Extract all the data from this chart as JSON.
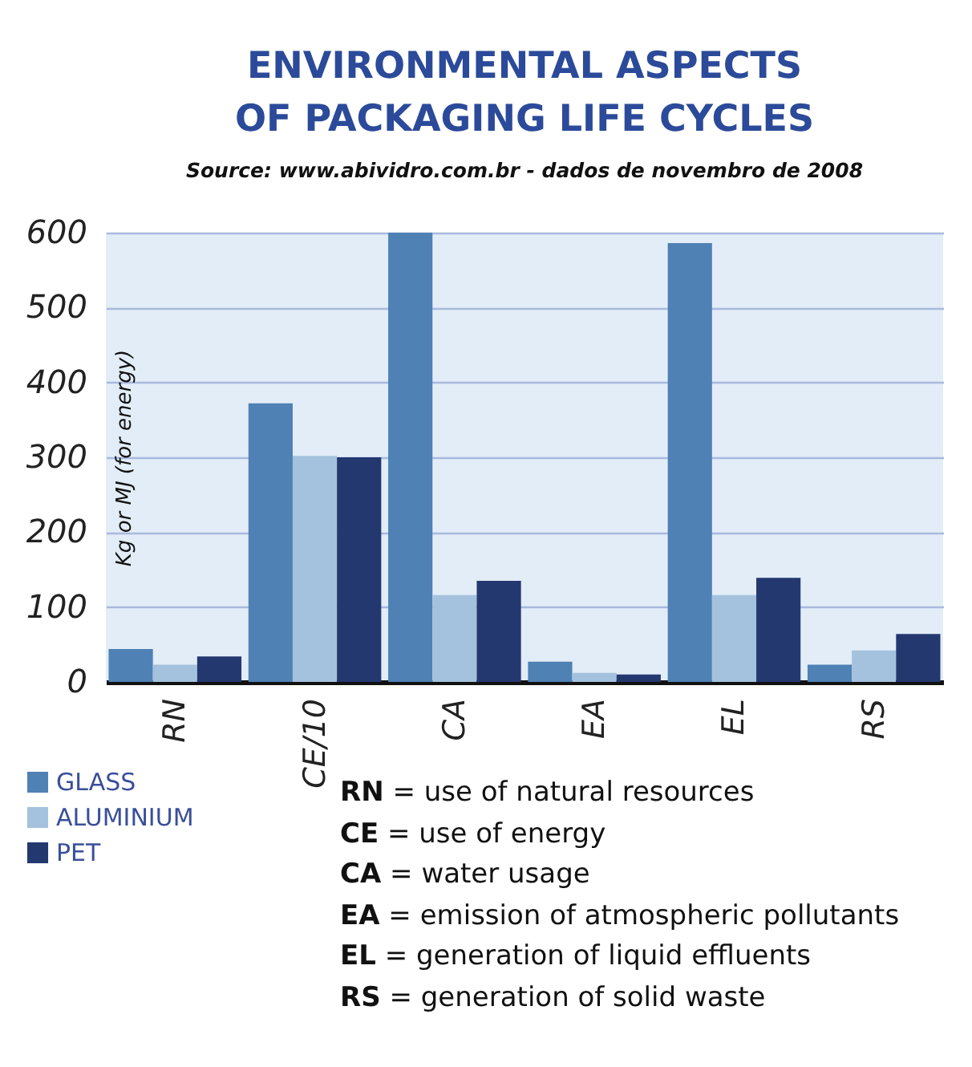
{
  "chart_data": {
    "type": "bar",
    "title": "ENVIRONMENTAL ASPECTS OF PACKAGING LIFE CYCLES",
    "ylabel": "Kg or MJ (for energy)",
    "categories": [
      "RN",
      "CE/10",
      "CA",
      "EA",
      "EL",
      "RS"
    ],
    "series": [
      {
        "name": "GLASS",
        "color": "#4f81b5",
        "values": [
          44,
          372,
          600,
          27,
          586,
          23
        ]
      },
      {
        "name": "ALUMINIUM",
        "color": "#a4c2dd",
        "values": [
          23,
          302,
          116,
          12,
          116,
          42
        ]
      },
      {
        "name": "PET",
        "color": "#243870",
        "values": [
          34,
          300,
          135,
          10,
          139,
          64
        ]
      }
    ],
    "ylim": [
      0,
      600
    ],
    "yticks": [
      0,
      100,
      200,
      300,
      400,
      500,
      600
    ],
    "grid": "y",
    "legend": "bottom left",
    "annotations": [
      "Source: www.abividro.com.br - dados de novembro de 2008",
      "RN = use of natural resources",
      "CE = use of energy",
      "CA = water usage",
      "EA = emission of atmospheric pollutants",
      "EL = generation of liquid effluents",
      "RS = generation of solid waste"
    ]
  }
}
